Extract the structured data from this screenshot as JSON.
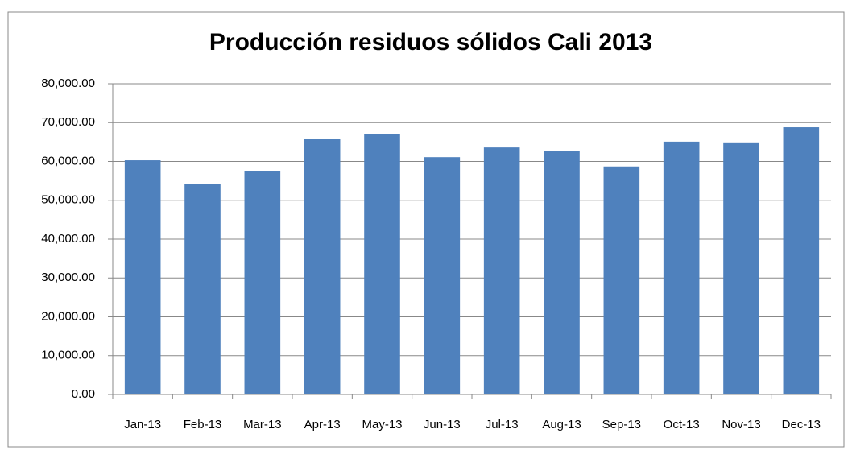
{
  "chart_data": {
    "type": "bar",
    "title": "Producción residuos sólidos Cali 2013",
    "categories": [
      "Jan-13",
      "Feb-13",
      "Mar-13",
      "Apr-13",
      "May-13",
      "Jun-13",
      "Jul-13",
      "Aug-13",
      "Sep-13",
      "Oct-13",
      "Nov-13",
      "Dec-13"
    ],
    "values": [
      60300,
      54100,
      57600,
      65700,
      67100,
      61100,
      63600,
      62600,
      58700,
      65100,
      64700,
      68800
    ],
    "color": "#4f81bd",
    "ylim": [
      0,
      80000
    ],
    "yticks": [
      {
        "value": 0,
        "label": "0.00"
      },
      {
        "value": 10000,
        "label": "10,000.00"
      },
      {
        "value": 20000,
        "label": "20,000.00"
      },
      {
        "value": 30000,
        "label": "30,000.00"
      },
      {
        "value": 40000,
        "label": "40,000.00"
      },
      {
        "value": 50000,
        "label": "50,000.00"
      },
      {
        "value": 60000,
        "label": "60,000.00"
      },
      {
        "value": 70000,
        "label": "70,000.00"
      },
      {
        "value": 80000,
        "label": "80,000.00"
      }
    ],
    "grid": true
  }
}
